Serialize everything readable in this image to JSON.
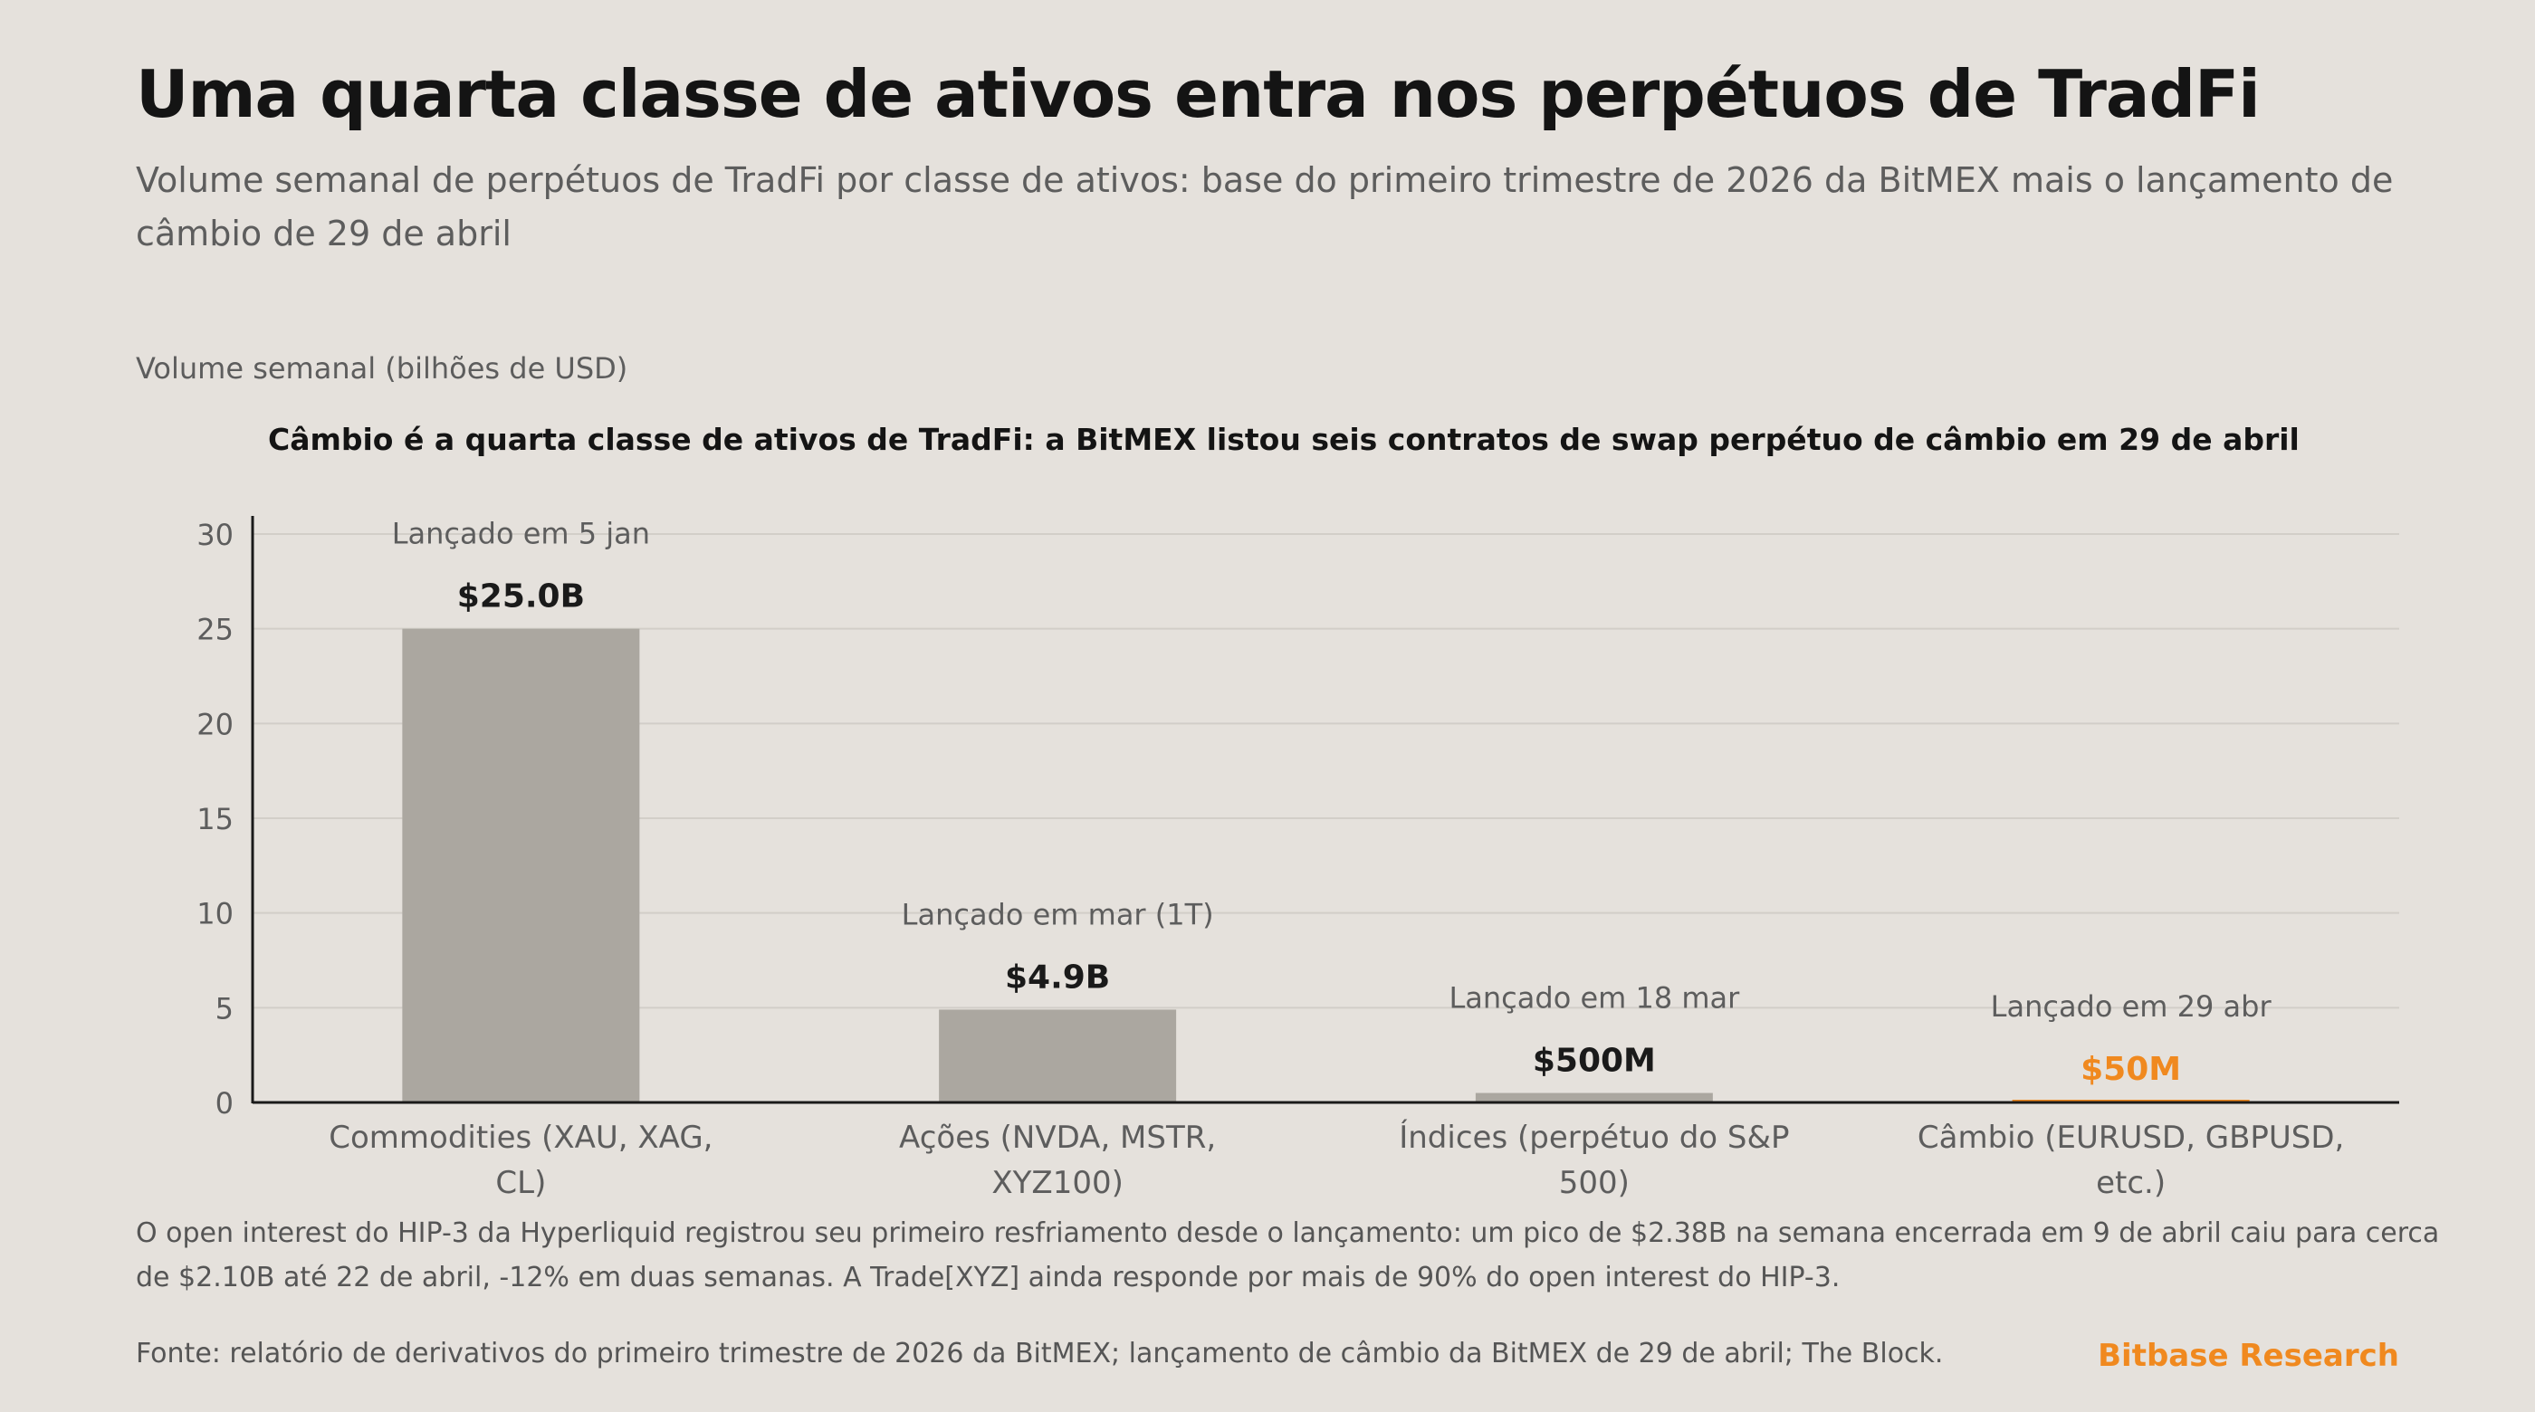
{
  "header": {
    "title": "Uma quarta classe de ativos entra nos perpétuos de TradFi",
    "subtitle": "Volume semanal de perpétuos de TradFi por classe de ativos: base do primeiro trimestre de 2026 da BitMEX mais o lançamento de câmbio de 29 de abril"
  },
  "chart_data": {
    "type": "bar",
    "title": "Câmbio é a quarta classe de ativos de TradFi: a BitMEX listou seis contratos de swap perpétuo de câmbio em 29 de abril",
    "ylabel": "Volume semanal (bilhões de USD)",
    "xlabel": "",
    "ylim": [
      0,
      30
    ],
    "yticks": [
      0,
      5,
      10,
      15,
      20,
      25,
      30
    ],
    "grid": true,
    "categories": [
      [
        "Commodities (XAU, XAG,",
        "CL)"
      ],
      [
        "Ações (NVDA, MSTR,",
        "XYZ100)"
      ],
      [
        "Índices (perpétuo do S&P",
        "500)"
      ],
      [
        "Câmbio (EURUSD, GBPUSD,",
        "etc.)"
      ]
    ],
    "values": [
      25.0,
      4.9,
      0.5,
      0.05
    ],
    "value_labels": [
      "$25.0B",
      "$4.9B",
      "$500M",
      "$50M"
    ],
    "annotations": [
      "Lançado em 5 jan",
      "Lançado em mar (1T)",
      "Lançado em 18 mar",
      "Lançado em 29 abr"
    ],
    "colors": [
      "#aba7a0",
      "#aba7a0",
      "#aba7a0",
      "#f0891f"
    ],
    "label_colors": [
      "#1a1a1a",
      "#1a1a1a",
      "#1a1a1a",
      "#f0891f"
    ]
  },
  "footer": {
    "note": "O open interest do HIP-3 da Hyperliquid registrou seu primeiro resfriamento desde o lançamento: um pico de $2.38B na semana encerrada em 9 de abril caiu para cerca de $2.10B até 22 de abril, -12% em duas semanas. A Trade[XYZ] ainda responde por mais de 90% do open interest do HIP-3.",
    "source": "Fonte: relatório de derivativos do primeiro trimestre de 2026 da BitMEX; lançamento de câmbio da BitMEX de 29 de abril; The Block.",
    "brand": "Bitbase Research"
  }
}
